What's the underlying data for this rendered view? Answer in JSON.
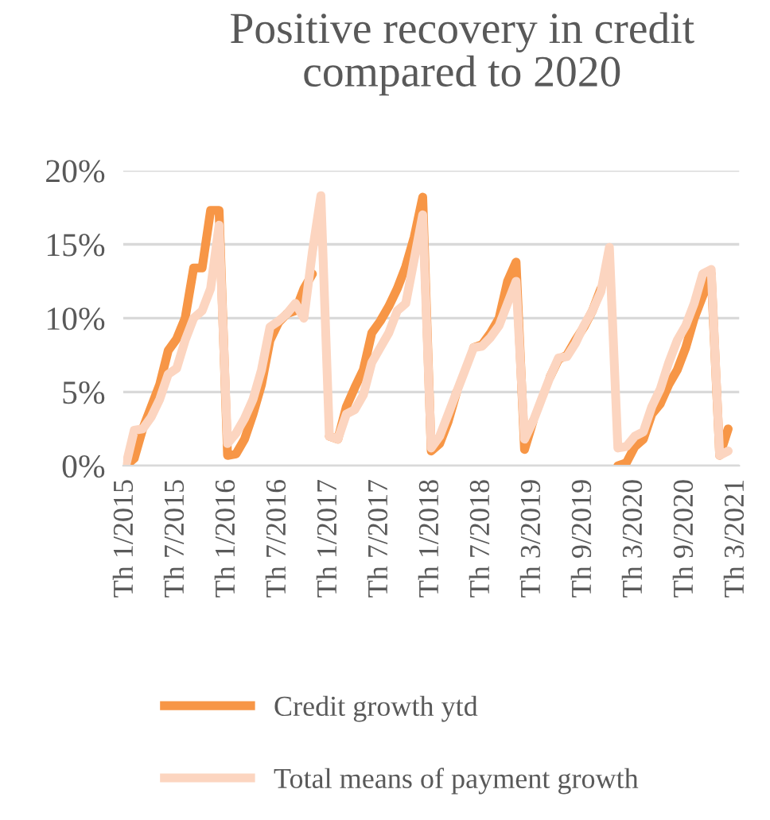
{
  "chart_data": {
    "type": "line",
    "title": "Positive recovery in credit\ncompared to 2020",
    "categories": [
      "Th 1/2015",
      null,
      null,
      null,
      null,
      null,
      "Th 7/2015",
      null,
      null,
      null,
      null,
      null,
      "Th 1/2016",
      null,
      null,
      null,
      null,
      null,
      "Th 7/2016",
      null,
      null,
      null,
      null,
      null,
      "Th 1/2017",
      null,
      null,
      null,
      null,
      null,
      "Th 7/2017",
      null,
      null,
      null,
      null,
      null,
      "Th 1/2018",
      null,
      null,
      null,
      null,
      null,
      "Th 7/2018",
      null,
      null,
      null,
      null,
      null,
      "Th 3/2019",
      null,
      null,
      null,
      null,
      null,
      "Th 9/2019",
      null,
      null,
      null,
      null,
      null,
      "Th 3/2020",
      null,
      null,
      null,
      null,
      null,
      "Th 9/2020",
      null,
      null,
      null,
      null,
      null,
      "Th 3/2021"
    ],
    "series": [
      {
        "name": "Credit growth ytd",
        "color": "#f79646",
        "values": [
          0,
          0.5,
          2.5,
          4,
          5.5,
          7.8,
          8.6,
          10,
          13.4,
          13.4,
          17.3,
          17.3,
          0.7,
          0.8,
          1.8,
          3.5,
          5.5,
          8.5,
          9.7,
          10.3,
          10.5,
          12,
          13,
          null,
          2.0,
          1.8,
          4,
          5.3,
          6.5,
          9,
          9.8,
          10.8,
          12,
          13.5,
          15.5,
          18.2,
          1.0,
          1.5,
          3,
          5,
          null,
          8,
          8.2,
          9,
          10,
          12.5,
          13.8,
          1.1,
          3,
          null,
          6,
          7.2,
          7.5,
          8.5,
          9.4,
          10.5,
          12,
          null,
          0,
          0.2,
          1.3,
          1.8,
          3.5,
          4.2,
          5.5,
          6.5,
          8,
          10,
          11.5,
          13,
          0.7,
          2.5,
          null
        ]
      },
      {
        "name": "Total means of payment growth",
        "color": "#fcd5c0",
        "values": [
          0,
          2.4,
          2.5,
          3.3,
          4.5,
          6.2,
          6.6,
          8.5,
          10,
          10.5,
          12,
          16.3,
          1.5,
          2.2,
          3.2,
          4.5,
          6.5,
          9.4,
          9.8,
          10.3,
          11,
          10,
          14.5,
          18.3,
          2.0,
          1.8,
          3.5,
          3.8,
          4.8,
          7,
          8,
          9,
          10.5,
          11,
          14,
          17,
          1.2,
          2,
          3.5,
          5,
          6.5,
          8,
          8.1,
          8.7,
          9.5,
          11,
          12.5,
          1.8,
          3,
          4.5,
          6,
          7.3,
          7.4,
          8.3,
          9.5,
          10.5,
          11.8,
          14.8,
          1.2,
          1.3,
          2,
          2.3,
          4,
          5.2,
          7,
          8.5,
          9.5,
          11,
          13,
          13.3,
          0.7,
          1.0,
          null
        ]
      }
    ],
    "ylim": [
      0,
      20
    ],
    "yticks": [
      {
        "value": 0,
        "label": "0%"
      },
      {
        "value": 5,
        "label": "5%"
      },
      {
        "value": 10,
        "label": "10%"
      },
      {
        "value": 15,
        "label": "15%"
      },
      {
        "value": 20,
        "label": "20%"
      }
    ],
    "grid": "y",
    "legend": "bottom",
    "marker": "none",
    "line_style": "solid"
  }
}
